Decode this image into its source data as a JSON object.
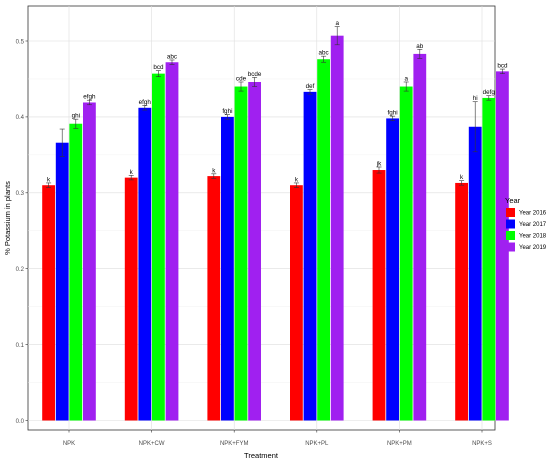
{
  "chart_data": {
    "type": "bar",
    "title": "",
    "xlabel": "Treatment",
    "ylabel": "% Potassium in plants",
    "ylim": [
      0,
      0.52
    ],
    "yticks": [
      "0.0",
      "0.1",
      "0.2",
      "0.3",
      "0.4",
      "0.5"
    ],
    "grid": true,
    "legend_position": "right",
    "legend_title": "Year",
    "categories": [
      "NPK",
      "NPK+CW",
      "NPK+FYM",
      "NPK+PL",
      "NPK+PM",
      "NPK+S"
    ],
    "series": [
      {
        "name": "Year 2016",
        "color": "#ff0000",
        "values": [
          0.31,
          0.32,
          0.322,
          0.31,
          0.33,
          0.313
        ],
        "errors": [
          0.003,
          0.003,
          0.003,
          0.003,
          0.004,
          0.003
        ],
        "labels": [
          "k",
          "k",
          "k",
          "k",
          "jk",
          "k"
        ]
      },
      {
        "name": "Year 2017",
        "color": "#0000ff",
        "values": [
          0.366,
          0.412,
          0.4,
          0.433,
          0.398,
          0.387
        ],
        "errors": [
          0.018,
          0.003,
          0.003,
          0.003,
          0.003,
          0.033
        ],
        "labels": [
          "",
          "efgh",
          "fghi",
          "def",
          "fghi",
          "hi"
        ]
      },
      {
        "name": "Year 2018",
        "color": "#00ff00",
        "values": [
          0.391,
          0.457,
          0.44,
          0.476,
          0.44,
          0.425
        ],
        "errors": [
          0.006,
          0.004,
          0.006,
          0.004,
          0.006,
          0.003
        ],
        "labels": [
          "ghi",
          "bcd",
          "cde",
          "abc",
          "a",
          "defg"
        ]
      },
      {
        "name": "Year 2019",
        "color": "#a020f0",
        "values": [
          0.419,
          0.472,
          0.446,
          0.507,
          0.483,
          0.46
        ],
        "errors": [
          0.003,
          0.003,
          0.006,
          0.012,
          0.006,
          0.003
        ],
        "labels": [
          "efgh",
          "abc",
          "bcde",
          "a",
          "ab",
          "bcd"
        ]
      }
    ]
  }
}
